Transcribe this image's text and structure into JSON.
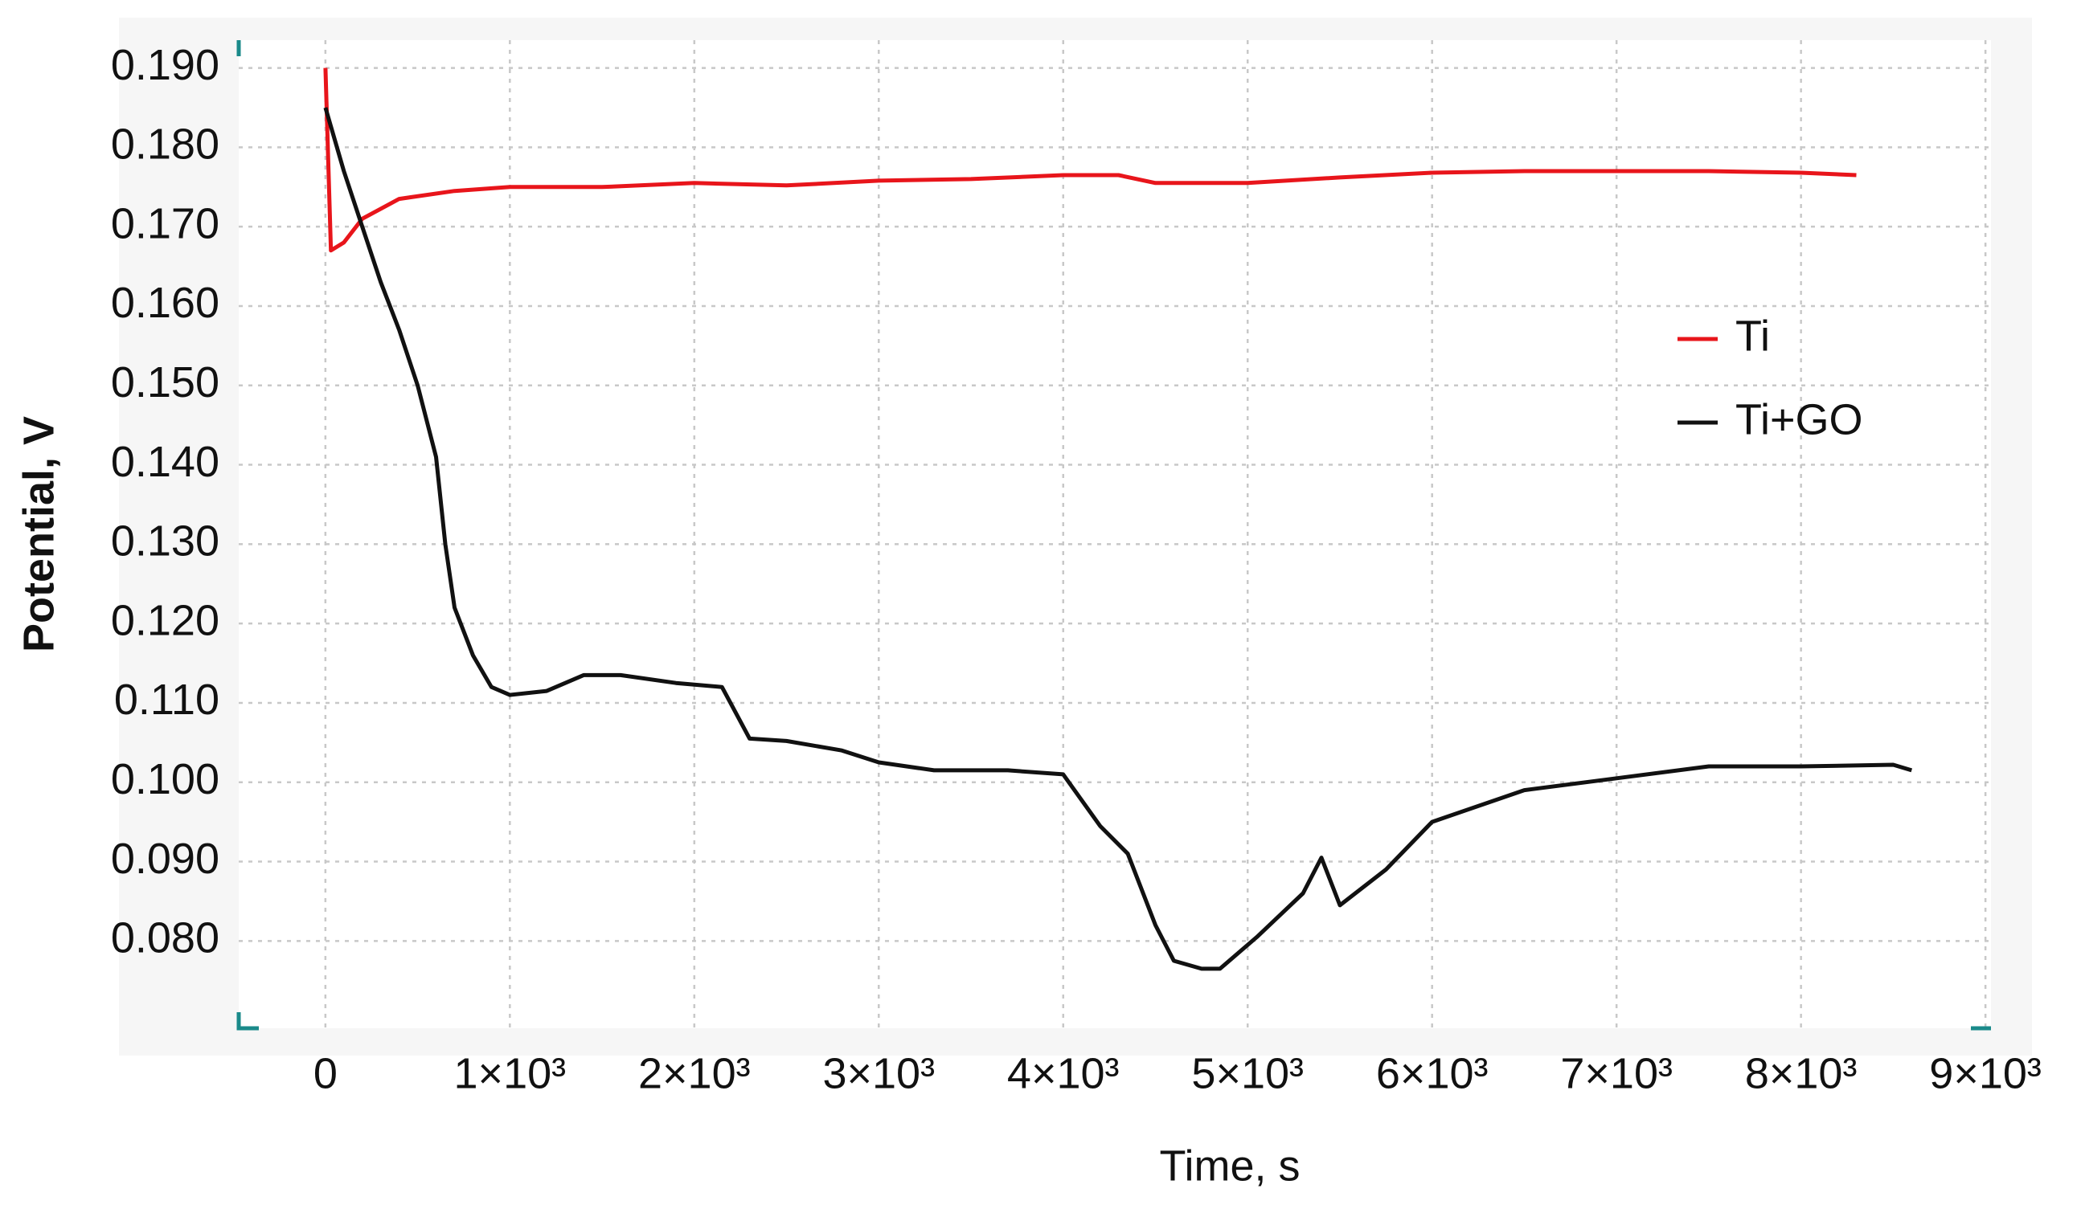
{
  "chart_data": {
    "type": "line",
    "xlabel": "Time, s",
    "ylabel": "Potential, V",
    "xlim": [
      -470,
      9030
    ],
    "ylim": [
      0.069,
      0.1935
    ],
    "xticks": [
      0,
      {
        "value": 1000,
        "label": "1×10³"
      },
      {
        "value": 2000,
        "label": "2×10³"
      },
      {
        "value": 3000,
        "label": "3×10³"
      },
      {
        "value": 4000,
        "label": "4×10³"
      },
      {
        "value": 5000,
        "label": "5×10³"
      },
      {
        "value": 6000,
        "label": "6×10³"
      },
      {
        "value": 7000,
        "label": "7×10³"
      },
      {
        "value": 8000,
        "label": "8×10³"
      },
      {
        "value": 9000,
        "label": "9×10³"
      }
    ],
    "yticks": [
      {
        "value": 0.08,
        "label": "0.080"
      },
      {
        "value": 0.09,
        "label": "0.090"
      },
      {
        "value": 0.1,
        "label": "0.100"
      },
      {
        "value": 0.11,
        "label": "0.110"
      },
      {
        "value": 0.12,
        "label": "0.120"
      },
      {
        "value": 0.13,
        "label": "0.130"
      },
      {
        "value": 0.14,
        "label": "0.140"
      },
      {
        "value": 0.15,
        "label": "0.150"
      },
      {
        "value": 0.16,
        "label": "0.160"
      },
      {
        "value": 0.17,
        "label": "0.170"
      },
      {
        "value": 0.18,
        "label": "0.180"
      },
      {
        "value": 0.19,
        "label": "0.190"
      }
    ],
    "grid": true,
    "legend": "right",
    "series": [
      {
        "name": "Ti",
        "color": "#e8151b",
        "x": [
          0,
          30,
          100,
          200,
          400,
          700,
          1000,
          1500,
          2000,
          2500,
          3000,
          3500,
          4000,
          4300,
          4500,
          5000,
          5500,
          6000,
          6500,
          7000,
          7500,
          8000,
          8300
        ],
        "values": [
          0.19,
          0.167,
          0.168,
          0.171,
          0.1735,
          0.1745,
          0.175,
          0.175,
          0.1755,
          0.1752,
          0.1758,
          0.176,
          0.1765,
          0.1765,
          0.1755,
          0.1755,
          0.1762,
          0.1768,
          0.177,
          0.177,
          0.177,
          0.1768,
          0.1765
        ]
      },
      {
        "name": "Ti+GO",
        "color": "#111111",
        "x": [
          0,
          100,
          200,
          300,
          400,
          500,
          600,
          650,
          700,
          800,
          900,
          1000,
          1200,
          1400,
          1600,
          1900,
          2150,
          2300,
          2500,
          2800,
          3000,
          3300,
          3700,
          4000,
          4200,
          4350,
          4500,
          4600,
          4750,
          4850,
          5050,
          5300,
          5400,
          5500,
          5750,
          6000,
          6500,
          7000,
          7500,
          8000,
          8500,
          8600
        ],
        "values": [
          0.185,
          0.177,
          0.17,
          0.163,
          0.157,
          0.15,
          0.141,
          0.13,
          0.122,
          0.116,
          0.112,
          0.111,
          0.1115,
          0.1135,
          0.1135,
          0.1125,
          0.112,
          0.1055,
          0.1052,
          0.104,
          0.1025,
          0.1015,
          0.1015,
          0.101,
          0.0945,
          0.091,
          0.082,
          0.0775,
          0.0765,
          0.0765,
          0.0805,
          0.086,
          0.0905,
          0.0845,
          0.089,
          0.095,
          0.099,
          0.1005,
          0.102,
          0.102,
          0.1022,
          0.1015
        ]
      }
    ]
  }
}
